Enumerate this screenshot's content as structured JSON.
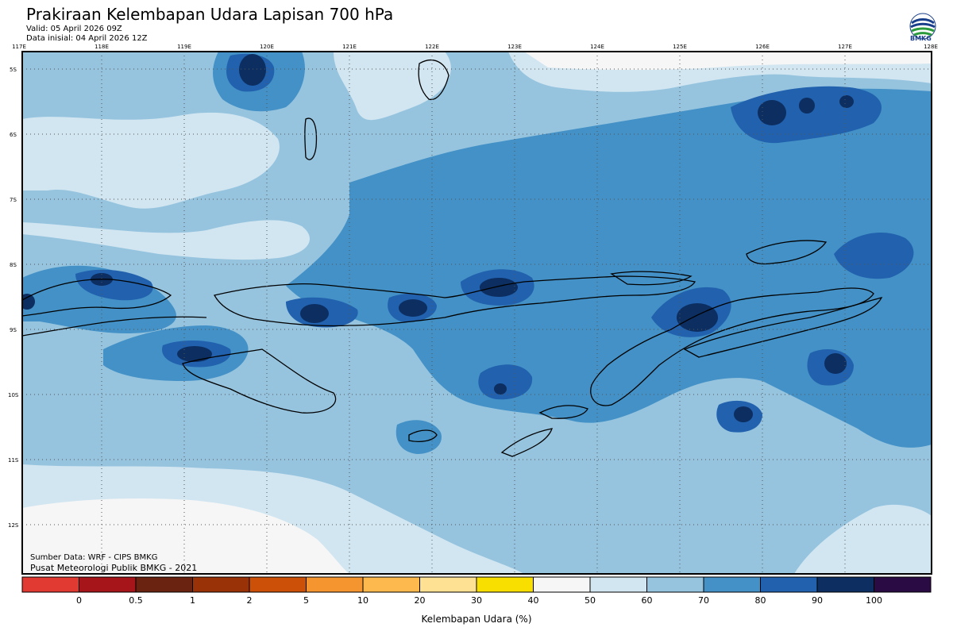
{
  "header": {
    "title": "Prakiraan Kelembapan Udara Lapisan 700 hPa",
    "valid": "Valid: 05 April 2026 09Z",
    "init": "Data inisial: 04 April 2026 12Z",
    "logo_text": "BMKG"
  },
  "map": {
    "lon_ticks": [
      "117E",
      "118E",
      "119E",
      "120E",
      "121E",
      "122E",
      "123E",
      "124E",
      "125E",
      "126E",
      "127E",
      "128E"
    ],
    "lat_ticks": [
      "5S",
      "6S",
      "7S",
      "8S",
      "9S",
      "10S",
      "11S",
      "12S"
    ],
    "lon_range": [
      117,
      128
    ],
    "lat_range": [
      -4.8,
      -12.8
    ],
    "grid": true
  },
  "colorbar": {
    "labels": [
      "0",
      "0.5",
      "1",
      "2",
      "5",
      "10",
      "20",
      "30",
      "40",
      "50",
      "60",
      "70",
      "80",
      "90",
      "100"
    ],
    "colors": [
      "#e03a33",
      "#a51519",
      "#6a2310",
      "#9a3208",
      "#cc5008",
      "#f59530",
      "#fdb94d",
      "#fee193",
      "#f8df00",
      "#f6f6f6",
      "#d2e6f1",
      "#96c4df",
      "#4391c6",
      "#2161ad",
      "#0c2e61",
      "#2b0b44"
    ],
    "title": "Kelembapan Udara (%)"
  },
  "footer": {
    "source": "Sumber Data: WRF - CIPS BMKG",
    "org": "Pusat Meteorologi Publik BMKG - 2021"
  }
}
